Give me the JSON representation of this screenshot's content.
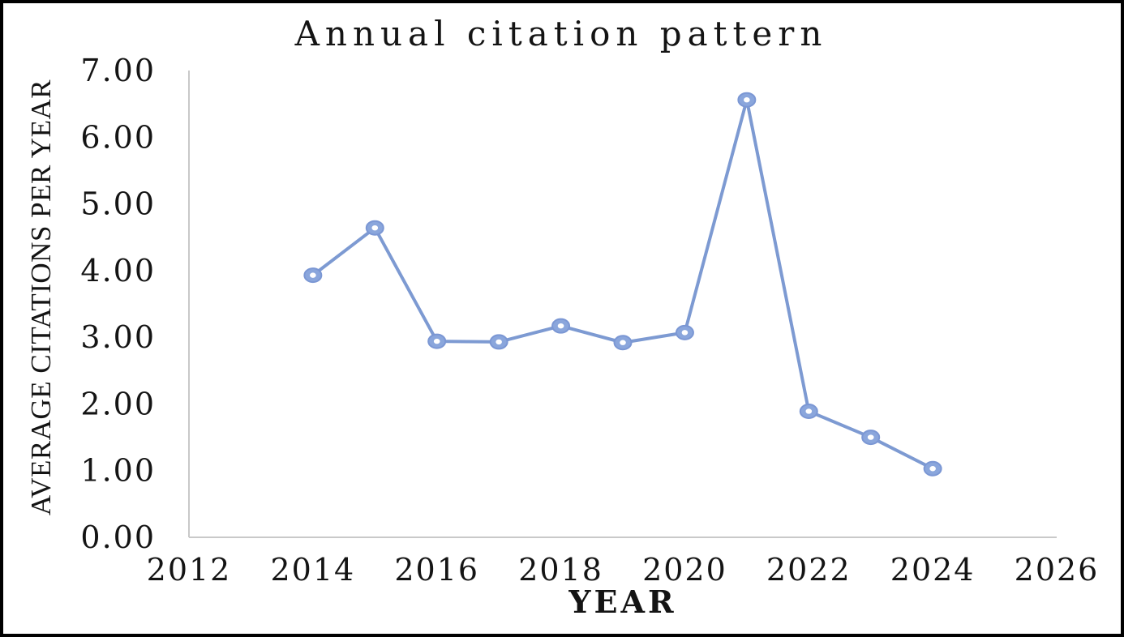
{
  "chart_data": {
    "type": "line",
    "title": "Annual citation pattern",
    "xlabel": "YEAR",
    "ylabel": "AVERAGE CITATIONS PER YEAR",
    "x": [
      2014,
      2015,
      2016,
      2017,
      2018,
      2019,
      2020,
      2021,
      2022,
      2023,
      2024
    ],
    "series": [
      {
        "name": "Average citations per year",
        "values": [
          3.93,
          4.64,
          2.94,
          2.93,
          3.17,
          2.92,
          3.07,
          6.56,
          1.89,
          1.5,
          1.03
        ]
      }
    ],
    "xlim": [
      2012,
      2026
    ],
    "ylim": [
      0,
      7
    ],
    "x_tick_labels": [
      "2012",
      "2014",
      "2016",
      "2018",
      "2020",
      "2022",
      "2024",
      "2026"
    ],
    "x_tick_values": [
      2012,
      2014,
      2016,
      2018,
      2020,
      2022,
      2024,
      2026
    ],
    "y_tick_labels": [
      "0.00",
      "1.00",
      "2.00",
      "3.00",
      "4.00",
      "5.00",
      "6.00",
      "7.00"
    ],
    "y_tick_values": [
      0,
      1,
      2,
      3,
      4,
      5,
      6,
      7
    ],
    "grid": false,
    "legend_position": "none",
    "colors": {
      "line": "#7d9ad2",
      "marker_fill": "#8aa6dc",
      "marker_stroke": "#7b97d4",
      "marker_hole": "#ffffff",
      "axis_line": "#c9c9c9",
      "text": "#141414",
      "border": "#000000",
      "background": "#ffffff"
    }
  }
}
